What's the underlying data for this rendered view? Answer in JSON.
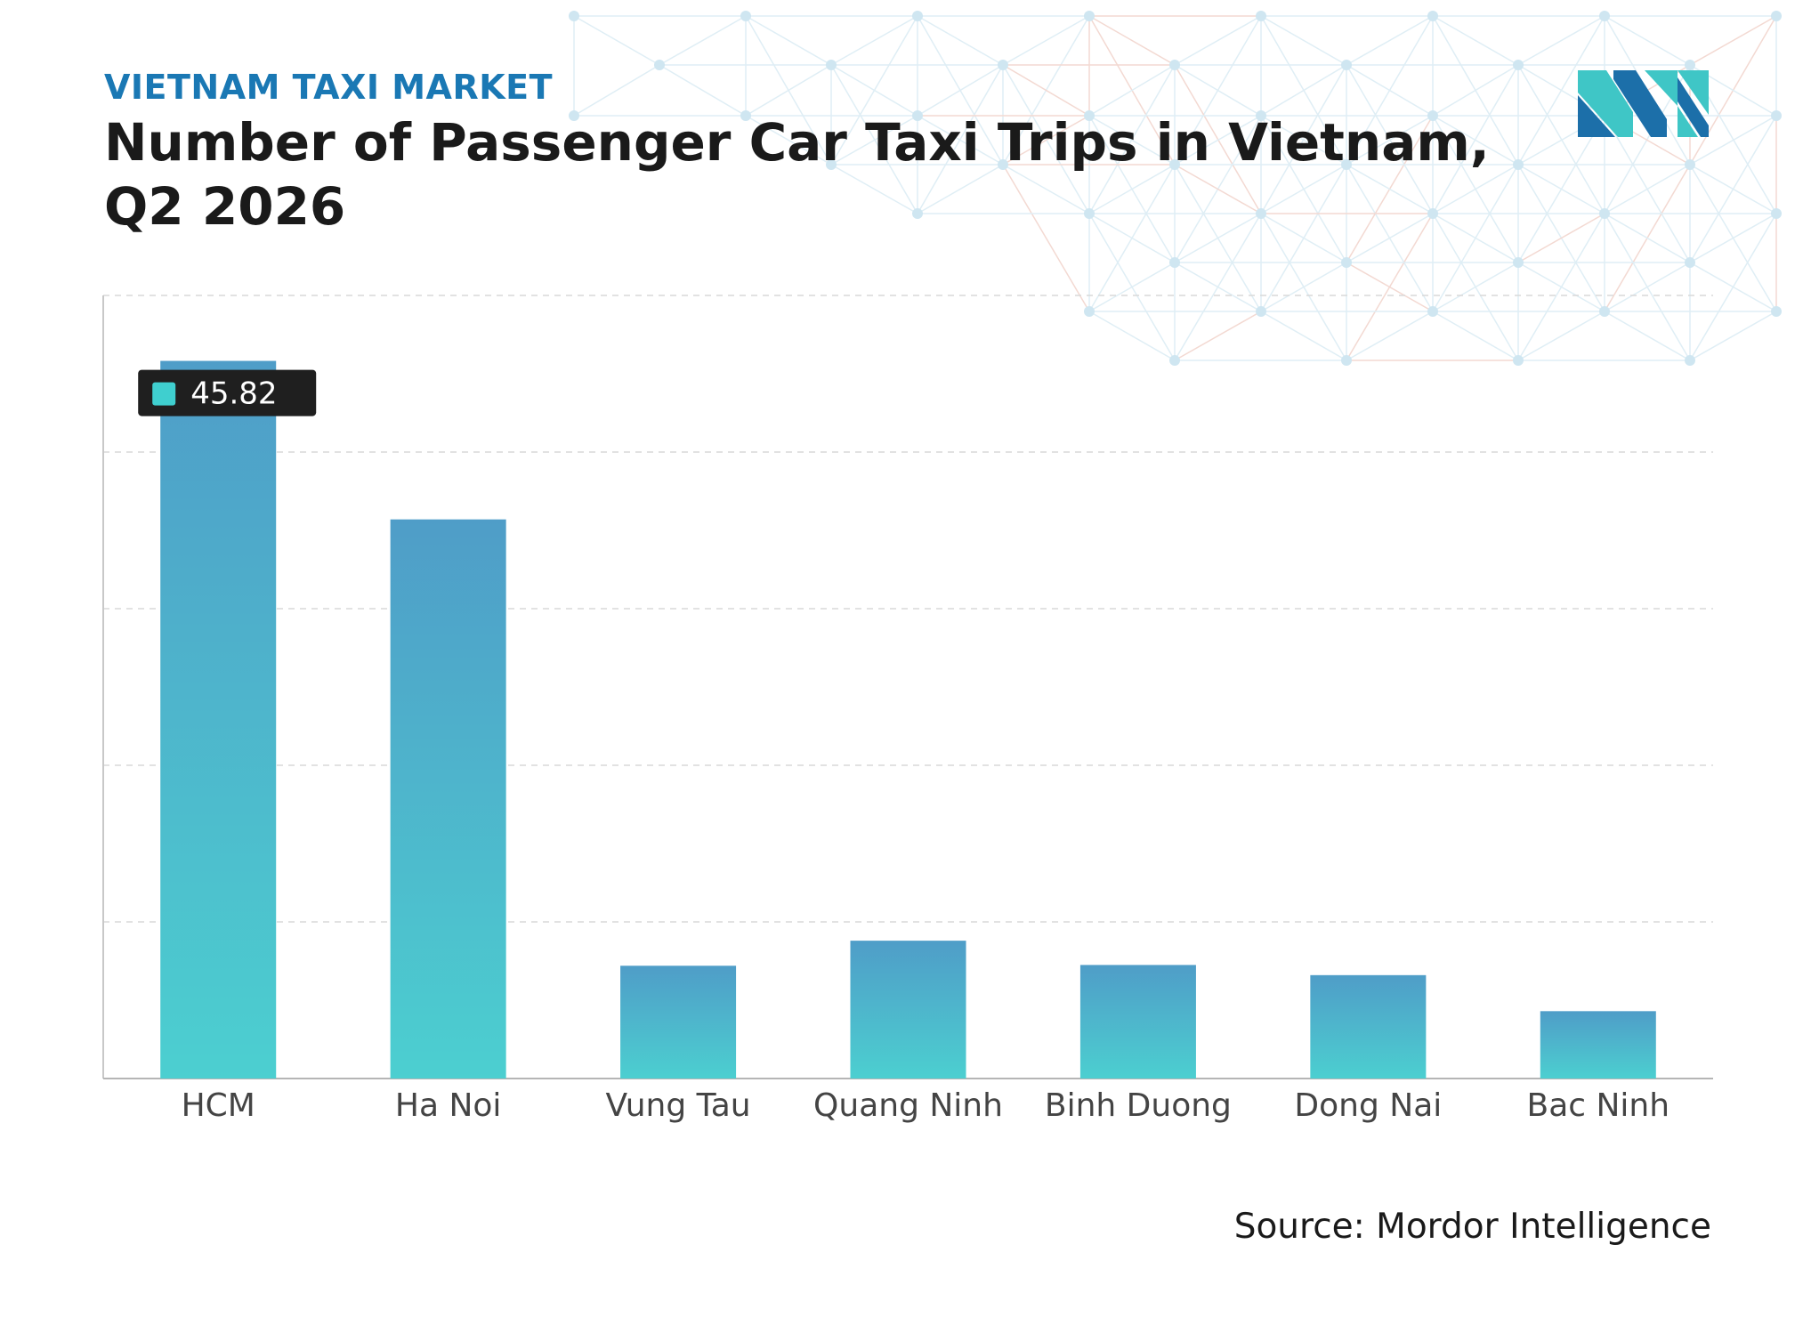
{
  "header": {
    "eyebrow": "VIETNAM TAXI MARKET",
    "title": "Number of Passenger Car Taxi Trips in Vietnam, Q2 2026"
  },
  "footer": {
    "source": "Source: Mordor Intelligence"
  },
  "colors": {
    "bar_top": "#4f9dc8",
    "bar_bottom": "#4ccfd0",
    "tooltip_bg": "#1f1f1f",
    "tooltip_swatch": "#3fcfcf",
    "eyebrow": "#1a78b4",
    "logo_dark": "#1c6fa9",
    "logo_light": "#3fc6c6"
  },
  "chart_data": {
    "type": "bar",
    "title": "Number of Passenger Car Taxi Trips in Vietnam, Q2 2026",
    "categories": [
      "HCM",
      "Ha  Noi",
      "Vung   Tau",
      "Quang  Ninh",
      "Binh   Duong",
      "Dong   Nai",
      "Bac  Ninh"
    ],
    "values": [
      45.82,
      35.7,
      7.2,
      8.8,
      7.25,
      6.6,
      4.3
    ],
    "xlabel": "",
    "ylabel": "",
    "ylim": [
      0,
      50
    ],
    "grid": true,
    "tooltip": {
      "category": "HCM",
      "value_label": "45.82"
    }
  }
}
